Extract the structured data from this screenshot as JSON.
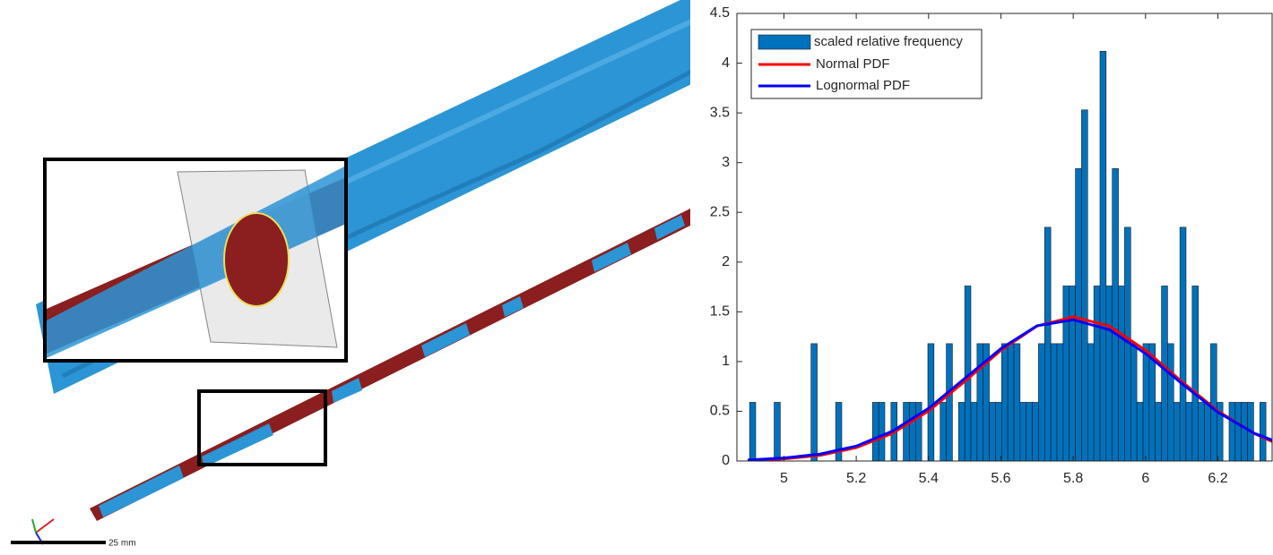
{
  "image": {
    "scale_bar": "25 mm"
  },
  "chart_data": {
    "type": "histogram",
    "legend_label": "scaled relative frequency",
    "color": "#0072bd",
    "bins": [
      4.905,
      4.922,
      4.939,
      4.956,
      4.973,
      4.99,
      5.007,
      5.024,
      5.041,
      5.058,
      5.075,
      5.092,
      5.109,
      5.126,
      5.143,
      5.16,
      5.177,
      5.194,
      5.211,
      5.228,
      5.245,
      5.262,
      5.279,
      5.296,
      5.313,
      5.33,
      5.347,
      5.364,
      5.381,
      5.398,
      5.415,
      5.432,
      5.449,
      5.466,
      5.483,
      5.5,
      5.517,
      5.534,
      5.551,
      5.568,
      5.585,
      5.602,
      5.619,
      5.636,
      5.653,
      5.67,
      5.687,
      5.704,
      5.721,
      5.738,
      5.755,
      5.772,
      5.789,
      5.806,
      5.823,
      5.84,
      5.857,
      5.874,
      5.891,
      5.908,
      5.925,
      5.942,
      5.959,
      5.976,
      5.993,
      6.01,
      6.027,
      6.044,
      6.061,
      6.078,
      6.095,
      6.112,
      6.129,
      6.146,
      6.163,
      6.18,
      6.197,
      6.214,
      6.231,
      6.248,
      6.265,
      6.282,
      6.299,
      6.316,
      6.333,
      6.35
    ],
    "values": [
      0.59,
      0,
      0,
      0,
      0.59,
      0,
      0,
      0,
      0,
      0,
      1.18,
      0,
      0,
      0,
      0.59,
      0,
      0,
      0,
      0,
      0,
      0.59,
      0.59,
      0,
      0.59,
      0,
      0.59,
      0.59,
      0.59,
      0,
      1.18,
      0,
      0.59,
      1.18,
      0,
      0.59,
      1.76,
      0.59,
      1.18,
      1.18,
      0.59,
      0.59,
      1.18,
      1.18,
      1.18,
      0.59,
      0.59,
      0.59,
      1.18,
      2.35,
      1.18,
      1.18,
      1.76,
      1.76,
      2.94,
      3.53,
      1.18,
      1.76,
      4.12,
      1.76,
      2.94,
      1.76,
      2.35,
      1.18,
      0.59,
      1.18,
      1.18,
      0.59,
      1.76,
      1.18,
      0.59,
      2.35,
      0.59,
      1.76,
      0.59,
      0.59,
      1.18,
      0.59,
      0,
      0.59,
      0.59,
      0.59,
      0.59,
      0,
      0.59,
      0
    ],
    "series": [
      {
        "name": "Normal PDF",
        "type": "line",
        "color": "#ff0000",
        "x": [
          4.9,
          5.0,
          5.1,
          5.2,
          5.3,
          5.4,
          5.5,
          5.6,
          5.7,
          5.8,
          5.9,
          6.0,
          6.1,
          6.2,
          6.3,
          6.35
        ],
        "values": [
          0.007,
          0.021,
          0.057,
          0.134,
          0.278,
          0.503,
          0.8,
          1.113,
          1.357,
          1.45,
          1.357,
          1.113,
          0.8,
          0.503,
          0.278,
          0.196
        ]
      },
      {
        "name": "Lognormal PDF",
        "type": "line",
        "color": "#0000ff",
        "x": [
          4.9,
          5.0,
          5.1,
          5.2,
          5.3,
          5.4,
          5.5,
          5.6,
          5.7,
          5.8,
          5.9,
          6.0,
          6.1,
          6.2,
          6.3,
          6.35
        ],
        "values": [
          0.01,
          0.03,
          0.07,
          0.15,
          0.3,
          0.53,
          0.83,
          1.13,
          1.36,
          1.42,
          1.32,
          1.08,
          0.78,
          0.49,
          0.28,
          0.21
        ]
      }
    ],
    "xlim": [
      4.87,
      6.35
    ],
    "xticks": [
      5,
      5.2,
      5.4,
      5.6,
      5.8,
      6,
      6.2
    ],
    "ylim": [
      0,
      4.5
    ],
    "yticks": [
      0,
      0.5,
      1,
      1.5,
      2,
      2.5,
      3,
      3.5,
      4,
      4.5
    ],
    "legend": "upper left"
  }
}
